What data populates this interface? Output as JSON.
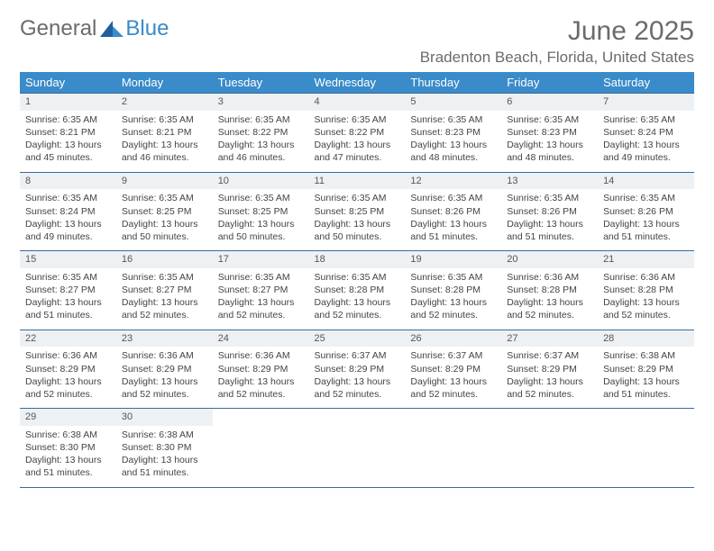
{
  "logo": {
    "text1": "General",
    "text2": "Blue"
  },
  "title": "June 2025",
  "location": "Bradenton Beach, Florida, United States",
  "colors": {
    "header_bg": "#3a8bc9",
    "header_text": "#ffffff",
    "border": "#3a6b9c",
    "daynum_bg": "#eef1f4",
    "text": "#444444",
    "title_text": "#6b6b6b"
  },
  "weekdays": [
    "Sunday",
    "Monday",
    "Tuesday",
    "Wednesday",
    "Thursday",
    "Friday",
    "Saturday"
  ],
  "weeks": [
    [
      {
        "n": "1",
        "sr": "6:35 AM",
        "ss": "8:21 PM",
        "dl": "13 hours and 45 minutes."
      },
      {
        "n": "2",
        "sr": "6:35 AM",
        "ss": "8:21 PM",
        "dl": "13 hours and 46 minutes."
      },
      {
        "n": "3",
        "sr": "6:35 AM",
        "ss": "8:22 PM",
        "dl": "13 hours and 46 minutes."
      },
      {
        "n": "4",
        "sr": "6:35 AM",
        "ss": "8:22 PM",
        "dl": "13 hours and 47 minutes."
      },
      {
        "n": "5",
        "sr": "6:35 AM",
        "ss": "8:23 PM",
        "dl": "13 hours and 48 minutes."
      },
      {
        "n": "6",
        "sr": "6:35 AM",
        "ss": "8:23 PM",
        "dl": "13 hours and 48 minutes."
      },
      {
        "n": "7",
        "sr": "6:35 AM",
        "ss": "8:24 PM",
        "dl": "13 hours and 49 minutes."
      }
    ],
    [
      {
        "n": "8",
        "sr": "6:35 AM",
        "ss": "8:24 PM",
        "dl": "13 hours and 49 minutes."
      },
      {
        "n": "9",
        "sr": "6:35 AM",
        "ss": "8:25 PM",
        "dl": "13 hours and 50 minutes."
      },
      {
        "n": "10",
        "sr": "6:35 AM",
        "ss": "8:25 PM",
        "dl": "13 hours and 50 minutes."
      },
      {
        "n": "11",
        "sr": "6:35 AM",
        "ss": "8:25 PM",
        "dl": "13 hours and 50 minutes."
      },
      {
        "n": "12",
        "sr": "6:35 AM",
        "ss": "8:26 PM",
        "dl": "13 hours and 51 minutes."
      },
      {
        "n": "13",
        "sr": "6:35 AM",
        "ss": "8:26 PM",
        "dl": "13 hours and 51 minutes."
      },
      {
        "n": "14",
        "sr": "6:35 AM",
        "ss": "8:26 PM",
        "dl": "13 hours and 51 minutes."
      }
    ],
    [
      {
        "n": "15",
        "sr": "6:35 AM",
        "ss": "8:27 PM",
        "dl": "13 hours and 51 minutes."
      },
      {
        "n": "16",
        "sr": "6:35 AM",
        "ss": "8:27 PM",
        "dl": "13 hours and 52 minutes."
      },
      {
        "n": "17",
        "sr": "6:35 AM",
        "ss": "8:27 PM",
        "dl": "13 hours and 52 minutes."
      },
      {
        "n": "18",
        "sr": "6:35 AM",
        "ss": "8:28 PM",
        "dl": "13 hours and 52 minutes."
      },
      {
        "n": "19",
        "sr": "6:35 AM",
        "ss": "8:28 PM",
        "dl": "13 hours and 52 minutes."
      },
      {
        "n": "20",
        "sr": "6:36 AM",
        "ss": "8:28 PM",
        "dl": "13 hours and 52 minutes."
      },
      {
        "n": "21",
        "sr": "6:36 AM",
        "ss": "8:28 PM",
        "dl": "13 hours and 52 minutes."
      }
    ],
    [
      {
        "n": "22",
        "sr": "6:36 AM",
        "ss": "8:29 PM",
        "dl": "13 hours and 52 minutes."
      },
      {
        "n": "23",
        "sr": "6:36 AM",
        "ss": "8:29 PM",
        "dl": "13 hours and 52 minutes."
      },
      {
        "n": "24",
        "sr": "6:36 AM",
        "ss": "8:29 PM",
        "dl": "13 hours and 52 minutes."
      },
      {
        "n": "25",
        "sr": "6:37 AM",
        "ss": "8:29 PM",
        "dl": "13 hours and 52 minutes."
      },
      {
        "n": "26",
        "sr": "6:37 AM",
        "ss": "8:29 PM",
        "dl": "13 hours and 52 minutes."
      },
      {
        "n": "27",
        "sr": "6:37 AM",
        "ss": "8:29 PM",
        "dl": "13 hours and 52 minutes."
      },
      {
        "n": "28",
        "sr": "6:38 AM",
        "ss": "8:29 PM",
        "dl": "13 hours and 51 minutes."
      }
    ],
    [
      {
        "n": "29",
        "sr": "6:38 AM",
        "ss": "8:30 PM",
        "dl": "13 hours and 51 minutes."
      },
      {
        "n": "30",
        "sr": "6:38 AM",
        "ss": "8:30 PM",
        "dl": "13 hours and 51 minutes."
      },
      null,
      null,
      null,
      null,
      null
    ]
  ],
  "labels": {
    "sunrise": "Sunrise: ",
    "sunset": "Sunset: ",
    "daylight": "Daylight: "
  }
}
